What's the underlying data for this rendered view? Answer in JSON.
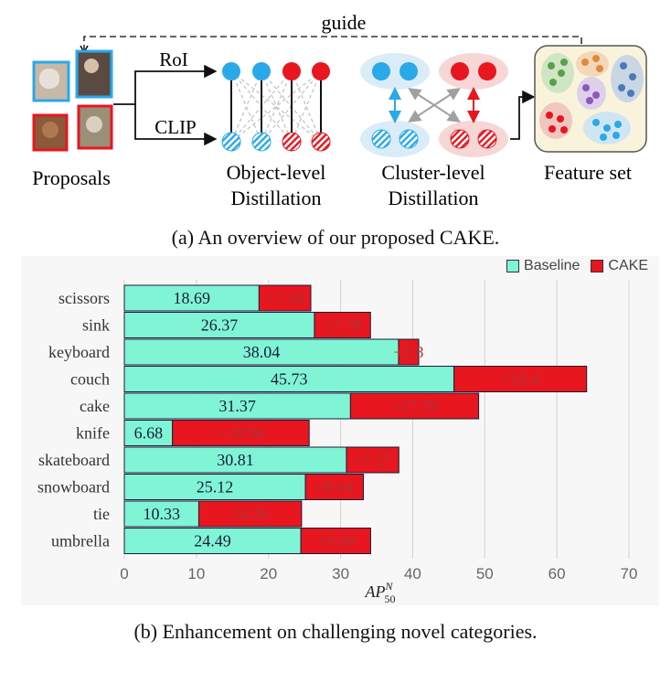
{
  "overview": {
    "guide_label": "guide",
    "roi_label": "RoI",
    "clip_label": "CLIP",
    "proposals_label": "Proposals",
    "object_level_line1": "Object-level",
    "object_level_line2": "Distillation",
    "cluster_level_line1": "Cluster-level",
    "cluster_level_line2": "Distillation",
    "feature_set_label": "Feature set",
    "caption": "(a) An overview of our proposed CAKE.",
    "colors": {
      "blue": "#29a9e8",
      "red": "#e8161e",
      "blue_light": "#d9ecf7",
      "red_light": "#f7d6d6"
    }
  },
  "chart_caption": "(b) Enhancement on challenging novel categories.",
  "chart_data": {
    "type": "bar",
    "orientation": "horizontal",
    "stacked": true,
    "categories": [
      "scissors",
      "sink",
      "keyboard",
      "couch",
      "cake",
      "knife",
      "skateboard",
      "snowboard",
      "tie",
      "umbrella"
    ],
    "series": [
      {
        "name": "Baseline",
        "color": "#7ff5d5",
        "values": [
          18.69,
          26.37,
          38.04,
          45.73,
          31.37,
          6.68,
          30.81,
          25.12,
          10.33,
          24.49
        ],
        "labels": [
          "18.69",
          "26.37",
          "38.04",
          "45.73",
          "31.37",
          "6.68",
          "30.81",
          "25.12",
          "10.33",
          "24.49"
        ]
      },
      {
        "name": "CAKE",
        "color": "#e8161e",
        "values": [
          7.18,
          7.78,
          2.8,
          18.4,
          17.78,
          18.96,
          7.27,
          8.04,
          14.26,
          9.68
        ],
        "labels": [
          "+7.18",
          "+7.78",
          "+2.8",
          "+18.4",
          "+17.78",
          "+18.96",
          "+7.27",
          "+8.04",
          "14.26",
          "+9.68"
        ]
      }
    ],
    "xlim": [
      0,
      70
    ],
    "xticks": [
      "0",
      "10",
      "20",
      "30",
      "40",
      "50",
      "60",
      "70"
    ],
    "xlabel_main": "AP",
    "xlabel_sup": "N",
    "xlabel_sub": "50",
    "grid": true,
    "legend_position": "top-right"
  }
}
